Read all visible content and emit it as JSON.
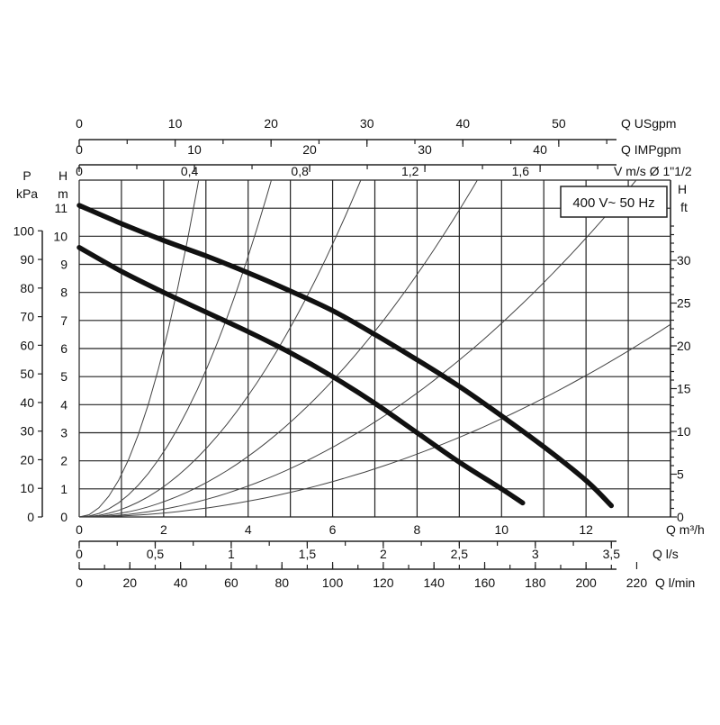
{
  "chart_data": {
    "type": "line",
    "annotation": "400 V~ 50 Hz",
    "x_axis": {
      "label": "Q m³/h",
      "min": 0,
      "max": 14,
      "ticks": [
        "0",
        "2",
        "4",
        "6",
        "8",
        "10",
        "12"
      ]
    },
    "y_left_m": {
      "label_top": "H",
      "label_bottom": "m",
      "min": 0,
      "max": 12,
      "ticks": [
        "0",
        "1",
        "2",
        "3",
        "4",
        "5",
        "6",
        "7",
        "8",
        "9",
        "10",
        "11"
      ]
    },
    "y_left_kpa": {
      "label_top": "P",
      "label_bottom": "kPa",
      "ticks": [
        "0",
        "10",
        "20",
        "30",
        "40",
        "50",
        "60",
        "70",
        "80",
        "90",
        "100"
      ]
    },
    "y_right_ft": {
      "label_top": "H",
      "label_bottom": "ft",
      "ticks": [
        "0",
        "5",
        "10",
        "15",
        "20",
        "25",
        "30"
      ]
    },
    "top_axes": [
      {
        "label": "Q USgpm",
        "ticks": [
          "0",
          "10",
          "20",
          "30",
          "40",
          "50"
        ]
      },
      {
        "label": "Q IMPgpm",
        "ticks": [
          "0",
          "10",
          "20",
          "30",
          "40"
        ]
      },
      {
        "label": "V m/s Ø 1\"1/2",
        "ticks": [
          "0",
          "0,4",
          "0,8",
          "1,2",
          "1,6"
        ]
      }
    ],
    "bottom_axes": [
      {
        "label": "Q l/s",
        "ticks": [
          "0",
          "0,5",
          "1",
          "1,5",
          "2",
          "2,5",
          "3",
          "3,5"
        ]
      },
      {
        "label": "Q l/min",
        "ticks": [
          "0",
          "20",
          "40",
          "60",
          "80",
          "100",
          "120",
          "140",
          "160",
          "180",
          "200",
          "220"
        ]
      }
    ],
    "series": [
      {
        "x": [
          0,
          1,
          2,
          3,
          4,
          5,
          6,
          7,
          8,
          9,
          10,
          11,
          12,
          12.6
        ],
        "y": [
          11.1,
          10.45,
          9.85,
          9.3,
          8.7,
          8.05,
          7.35,
          6.5,
          5.6,
          4.65,
          3.6,
          2.5,
          1.3,
          0.4
        ]
      },
      {
        "x": [
          0,
          1,
          2,
          3,
          4,
          5,
          6,
          7,
          8,
          9,
          10,
          10.5
        ],
        "y": [
          9.6,
          8.75,
          8.0,
          7.3,
          6.6,
          5.85,
          5.0,
          4.05,
          3.0,
          1.95,
          1.0,
          0.5
        ]
      }
    ],
    "system_curves_k": [
      1.5,
      0.58,
      0.27,
      0.135,
      0.069,
      0.035
    ],
    "grid": true
  }
}
